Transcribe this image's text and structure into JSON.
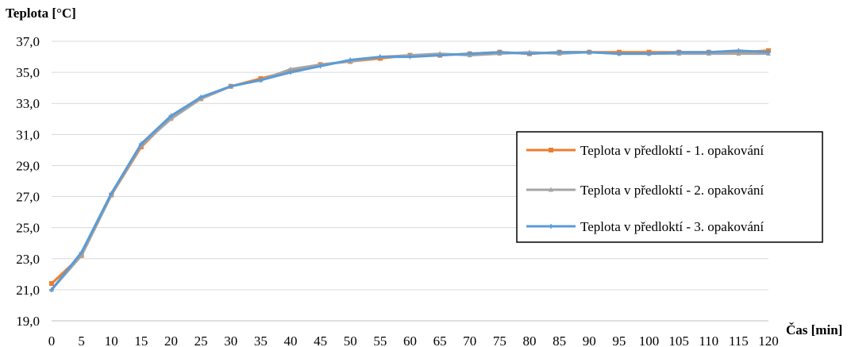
{
  "chart_data": {
    "type": "line",
    "title": "",
    "ylabel": "Teplota [°C]",
    "xlabel": "Čas [min]",
    "ylim": [
      19.0,
      37.0
    ],
    "yticks": [
      "19,0",
      "21,0",
      "23,0",
      "25,0",
      "27,0",
      "29,0",
      "31,0",
      "33,0",
      "35,0",
      "37,0"
    ],
    "x": [
      0,
      5,
      10,
      15,
      20,
      25,
      30,
      35,
      40,
      45,
      50,
      55,
      60,
      65,
      70,
      75,
      80,
      85,
      90,
      95,
      100,
      105,
      110,
      115,
      120
    ],
    "grid": "horizontal",
    "legend_position": "right",
    "series": [
      {
        "name": "Teplota v předloktí - 1. opakování",
        "color": "#ED7D31",
        "marker": "square",
        "values": [
          21.4,
          23.2,
          27.1,
          30.2,
          32.1,
          33.3,
          34.1,
          34.6,
          35.1,
          35.5,
          35.7,
          35.9,
          36.1,
          36.1,
          36.2,
          36.3,
          36.2,
          36.3,
          36.3,
          36.3,
          36.3,
          36.3,
          36.3,
          36.3,
          36.4
        ]
      },
      {
        "name": "Teplota v předloktí - 2. opakování",
        "color": "#A5A5A5",
        "marker": "triangle",
        "values": [
          21.0,
          23.2,
          27.1,
          30.3,
          32.0,
          33.3,
          34.1,
          34.5,
          35.2,
          35.5,
          35.7,
          36.0,
          36.1,
          36.2,
          36.1,
          36.2,
          36.3,
          36.2,
          36.3,
          36.2,
          36.2,
          36.2,
          36.2,
          36.2,
          36.2
        ]
      },
      {
        "name": "Teplota v předloktí - 3. opakování",
        "color": "#5B9BD5",
        "marker": "plus",
        "values": [
          21.0,
          23.4,
          27.2,
          30.4,
          32.2,
          33.4,
          34.1,
          34.5,
          35.0,
          35.4,
          35.8,
          36.0,
          36.0,
          36.1,
          36.2,
          36.3,
          36.2,
          36.3,
          36.3,
          36.2,
          36.2,
          36.3,
          36.3,
          36.4,
          36.3
        ]
      }
    ]
  }
}
